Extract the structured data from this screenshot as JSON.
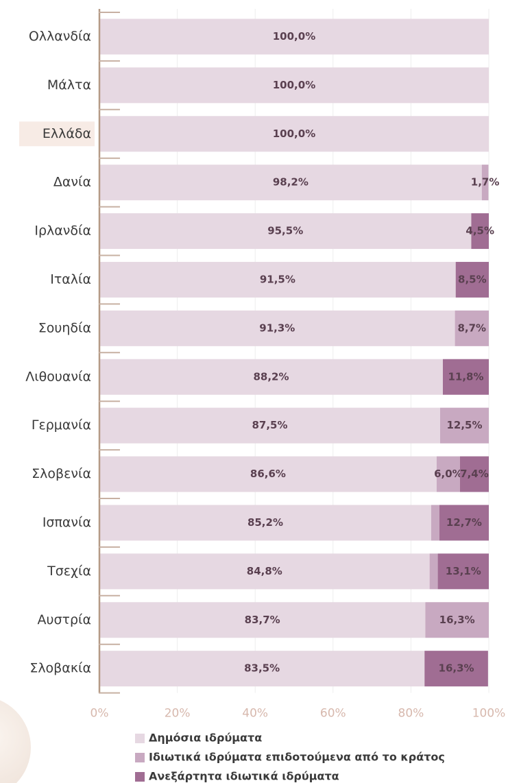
{
  "chart_data": {
    "type": "stacked_barh",
    "categories": [
      "Ολλανδία",
      "Μάλτα",
      "Ελλάδα",
      "Δανία",
      "Ιρλανδία",
      "Ιταλία",
      "Σουηδία",
      "Λιθουανία",
      "Γερμανία",
      "Σλοβενία",
      "Ισπανία",
      "Τσεχία",
      "Αυστρία",
      "Σλοβακία"
    ],
    "series": [
      {
        "name": "Δημόσια ιδρύματα",
        "color": "#e6d8e2",
        "values": [
          100,
          100,
          100,
          98.2,
          95.5,
          91.5,
          91.3,
          88.2,
          87.5,
          86.6,
          85.2,
          84.8,
          83.7,
          83.5
        ],
        "value_labels": [
          "100,0%",
          "100,0%",
          "100,0%",
          "98,2%",
          "95,5%",
          "91,5%",
          "91,3%",
          "88,2%",
          "87,5%",
          "86,6%",
          "85,2%",
          "84,8%",
          "83,7%",
          "83,5%"
        ]
      },
      {
        "name": "Ιδιωτικά ιδρύματα επιδοτούμενα από το κράτος",
        "color": "#c8a9c1",
        "values": [
          null,
          null,
          null,
          1.7,
          null,
          null,
          8.7,
          null,
          12.5,
          6.0,
          2.1,
          2.1,
          16.3,
          null
        ],
        "value_labels": [
          null,
          null,
          null,
          "1,7%",
          null,
          null,
          "8,7%",
          null,
          "12,5%",
          "6,0%",
          null,
          null,
          "16,3%",
          null
        ]
      },
      {
        "name": "Ανεξάρτητα ιδιωτικά ιδρύματα",
        "color": "#a06d93",
        "values": [
          null,
          null,
          null,
          null,
          4.5,
          8.5,
          null,
          11.8,
          null,
          7.4,
          12.7,
          13.1,
          null,
          16.3
        ],
        "value_labels": [
          null,
          null,
          null,
          null,
          "4,5%",
          "8,5%",
          null,
          "11,8%",
          null,
          "7,4%",
          "12,7%",
          "13,1%",
          null,
          "16,3%"
        ]
      }
    ],
    "xlim": [
      0,
      100
    ],
    "xticks": [
      {
        "value": 0,
        "label": "0%"
      },
      {
        "value": 20,
        "label": "20%"
      },
      {
        "value": 40,
        "label": "40%"
      },
      {
        "value": 60,
        "label": "60%"
      },
      {
        "value": 80,
        "label": "80%"
      },
      {
        "value": 100,
        "label": "100%"
      }
    ],
    "grid": true
  }
}
